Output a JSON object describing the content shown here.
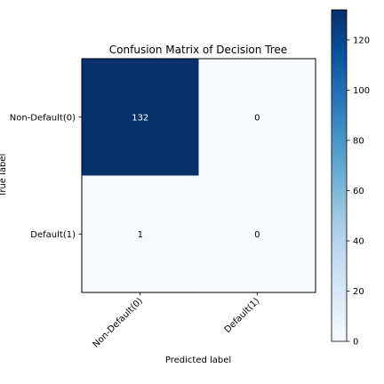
{
  "chart_data": {
    "type": "heatmap",
    "title": "Confusion Matrix of Decision Tree",
    "xlabel": "Predicted label",
    "ylabel": "True label",
    "row_labels": [
      "Non-Default(0)",
      "Default(1)"
    ],
    "col_labels": [
      "Non-Default(0)",
      "Default(1)"
    ],
    "values": [
      [
        132,
        0
      ],
      [
        1,
        0
      ]
    ],
    "colormap": "Blues",
    "color_low": "#f7fbff",
    "color_high": "#08306b",
    "colorbar": {
      "range": [
        0,
        132
      ],
      "ticks": [
        0,
        20,
        40,
        60,
        80,
        100,
        120
      ]
    }
  }
}
